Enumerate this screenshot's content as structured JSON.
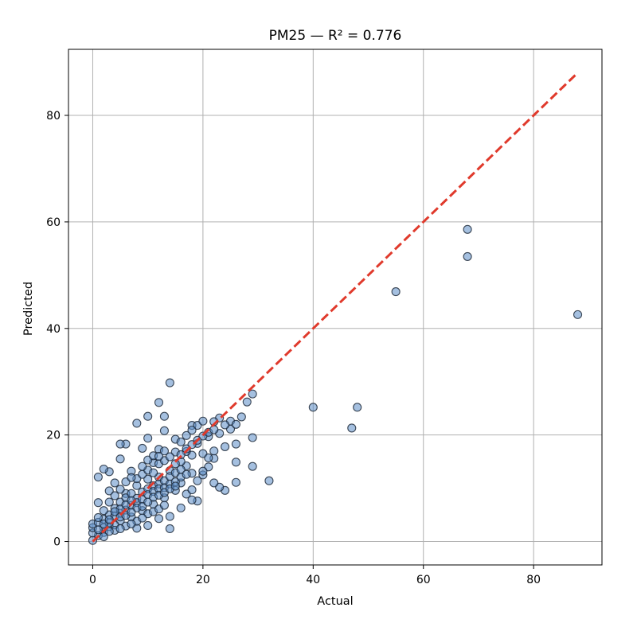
{
  "chart_data": {
    "type": "scatter",
    "title": "PM25 — R² = 0.776",
    "xlabel": "Actual",
    "ylabel": "Predicted",
    "xlim": [
      -4.4,
      92.4
    ],
    "ylim": [
      -4.4,
      92.4
    ],
    "xticks": [
      0,
      20,
      40,
      60,
      80
    ],
    "yticks": [
      0,
      20,
      40,
      60,
      80
    ],
    "grid": true,
    "reference_line": {
      "style": "dashed",
      "color": "#e03a2c",
      "from": [
        0,
        0
      ],
      "to": [
        88,
        88
      ]
    },
    "point_color": "#5b8cc7",
    "point_edge_color": "#1e2a3a",
    "series": [
      {
        "points": [
          [
            88,
            42.6
          ],
          [
            68,
            58.6
          ],
          [
            68,
            53.5
          ],
          [
            55,
            46.9
          ],
          [
            40,
            25.2
          ],
          [
            48,
            25.2
          ],
          [
            47,
            21.3
          ],
          [
            32,
            11.4
          ],
          [
            29,
            27.7
          ],
          [
            28,
            26.2
          ],
          [
            27,
            23.4
          ],
          [
            29,
            19.5
          ],
          [
            29,
            14.1
          ],
          [
            26,
            14.9
          ],
          [
            26,
            11.1
          ],
          [
            24,
            9.6
          ],
          [
            23,
            10.2
          ],
          [
            22,
            11.0
          ],
          [
            14,
            29.8
          ],
          [
            12,
            26.1
          ],
          [
            13,
            23.5
          ],
          [
            10,
            23.5
          ],
          [
            8,
            22.2
          ],
          [
            10,
            19.4
          ],
          [
            13,
            20.8
          ],
          [
            6,
            18.3
          ],
          [
            5,
            18.3
          ],
          [
            15,
            19.2
          ],
          [
            18,
            21.8
          ],
          [
            19,
            21.8
          ],
          [
            20,
            22.6
          ],
          [
            23,
            23.2
          ],
          [
            22,
            22.5
          ],
          [
            25,
            22.6
          ],
          [
            25,
            21.1
          ],
          [
            26,
            22.0
          ],
          [
            24,
            21.9
          ],
          [
            19,
            7.6
          ],
          [
            18,
            7.8
          ],
          [
            16,
            6.3
          ],
          [
            14,
            4.7
          ],
          [
            12,
            4.3
          ],
          [
            14,
            2.4
          ],
          [
            10,
            3.0
          ],
          [
            8,
            2.5
          ],
          [
            5,
            15.5
          ],
          [
            3,
            13.1
          ],
          [
            2,
            13.6
          ],
          [
            1,
            12.1
          ],
          [
            1,
            7.3
          ],
          [
            3,
            9.5
          ],
          [
            21,
            14.0
          ],
          [
            22,
            15.6
          ],
          [
            24,
            17.8
          ],
          [
            26,
            18.3
          ],
          [
            20,
            12.5
          ],
          [
            17,
            14.2
          ],
          [
            15,
            16.8
          ],
          [
            12,
            17.3
          ],
          [
            9,
            17.5
          ],
          [
            11,
            14.8
          ],
          [
            7,
            13.2
          ],
          [
            4,
            11.0
          ],
          [
            6,
            9.0
          ],
          [
            8,
            10.5
          ],
          [
            10,
            11.7
          ],
          [
            12,
            12.1
          ],
          [
            14,
            13.3
          ],
          [
            16,
            15.0
          ],
          [
            18,
            16.2
          ],
          [
            19,
            18.4
          ],
          [
            21,
            19.7
          ],
          [
            23,
            20.3
          ],
          [
            22,
            17.0
          ],
          [
            20,
            16.5
          ],
          [
            18,
            12.8
          ],
          [
            16,
            11.0
          ],
          [
            15,
            9.6
          ],
          [
            13,
            8.2
          ],
          [
            11,
            7.0
          ],
          [
            9,
            5.8
          ],
          [
            7,
            4.6
          ],
          [
            5,
            3.9
          ],
          [
            3,
            2.8
          ],
          [
            2,
            1.7
          ],
          [
            1,
            1.1
          ],
          [
            0,
            0.2
          ],
          [
            0,
            1.6
          ],
          [
            0,
            2.6
          ],
          [
            0,
            3.3
          ],
          [
            1,
            3.6
          ],
          [
            2,
            4.2
          ],
          [
            3,
            5.0
          ],
          [
            4,
            6.2
          ],
          [
            5,
            7.4
          ],
          [
            6,
            8.2
          ],
          [
            7,
            9.0
          ],
          [
            8,
            8.1
          ],
          [
            9,
            9.3
          ],
          [
            10,
            9.9
          ],
          [
            11,
            10.5
          ],
          [
            12,
            10.8
          ],
          [
            13,
            11.4
          ],
          [
            14,
            12.2
          ],
          [
            15,
            12.9
          ],
          [
            16,
            13.5
          ],
          [
            17,
            16.9
          ],
          [
            18,
            18.2
          ],
          [
            19,
            19.0
          ],
          [
            20,
            19.8
          ],
          [
            21,
            20.5
          ],
          [
            22,
            21.0
          ],
          [
            4,
            3.1
          ],
          [
            5,
            5.3
          ],
          [
            6,
            5.9
          ],
          [
            7,
            6.8
          ],
          [
            8,
            7.3
          ],
          [
            9,
            7.9
          ],
          [
            10,
            8.8
          ],
          [
            11,
            9.4
          ],
          [
            12,
            9.9
          ],
          [
            13,
            10.1
          ],
          [
            14,
            10.8
          ],
          [
            15,
            11.2
          ],
          [
            16,
            12.1
          ],
          [
            17,
            12.6
          ],
          [
            2,
            2.6
          ],
          [
            3,
            3.5
          ],
          [
            4,
            4.8
          ],
          [
            5,
            6.1
          ],
          [
            6,
            6.9
          ],
          [
            7,
            7.7
          ],
          [
            8,
            6.3
          ],
          [
            9,
            6.6
          ],
          [
            10,
            7.4
          ],
          [
            11,
            8.3
          ],
          [
            12,
            8.7
          ],
          [
            13,
            9.2
          ],
          [
            14,
            9.9
          ],
          [
            15,
            10.4
          ],
          [
            1,
            2.2
          ],
          [
            2,
            3.3
          ],
          [
            3,
            4.1
          ],
          [
            4,
            5.6
          ],
          [
            5,
            4.6
          ],
          [
            6,
            4.9
          ],
          [
            7,
            5.5
          ],
          [
            8,
            11.8
          ],
          [
            9,
            12.6
          ],
          [
            10,
            13.4
          ],
          [
            11,
            12.9
          ],
          [
            12,
            14.6
          ],
          [
            13,
            15.2
          ],
          [
            14,
            15.9
          ],
          [
            15,
            14.6
          ],
          [
            16,
            16.3
          ],
          [
            17,
            17.4
          ],
          [
            6,
            11.2
          ],
          [
            7,
            12.0
          ],
          [
            5,
            9.8
          ],
          [
            4,
            8.6
          ],
          [
            3,
            7.4
          ],
          [
            2,
            5.8
          ],
          [
            1,
            4.5
          ],
          [
            9,
            14.1
          ],
          [
            10,
            15.3
          ],
          [
            11,
            16.1
          ],
          [
            12,
            16.0
          ],
          [
            13,
            17.0
          ],
          [
            16,
            18.7
          ],
          [
            17,
            19.9
          ],
          [
            18,
            20.9
          ],
          [
            10,
            5.2
          ],
          [
            11,
            5.6
          ],
          [
            12,
            6.1
          ],
          [
            13,
            6.8
          ],
          [
            17,
            8.9
          ],
          [
            18,
            9.7
          ],
          [
            19,
            11.4
          ],
          [
            20,
            13.2
          ],
          [
            21,
            15.7
          ],
          [
            4,
            2.1
          ],
          [
            6,
            2.9
          ],
          [
            8,
            3.8
          ],
          [
            9,
            4.4
          ],
          [
            3,
            1.9
          ],
          [
            2,
            0.9
          ],
          [
            5,
            2.4
          ],
          [
            7,
            3.3
          ]
        ]
      }
    ]
  }
}
